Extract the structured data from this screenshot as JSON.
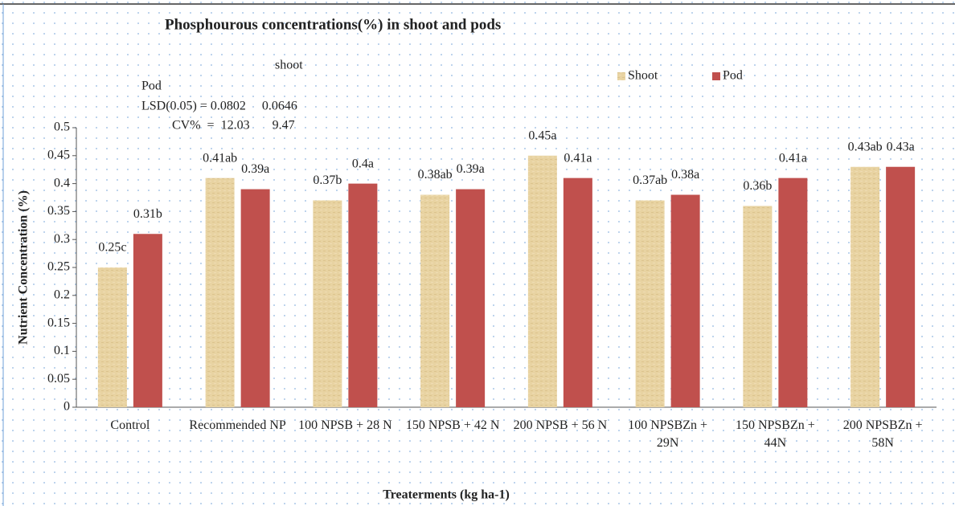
{
  "chart_data": {
    "type": "bar",
    "title": "Phosphourous concentrations(%) in shoot and pods",
    "x_label": "Treaterments (kg ha-1)",
    "y_label": "Nutrient Concentration (%)",
    "annotations": [
      "shoot",
      "Pod",
      "LSD(0.05) = 0.0802     0.0646",
      "CV%  =  12.03       9.47"
    ],
    "categories": [
      "Control",
      "Recommended NP",
      "100 NPSB + 28 N",
      "150 NPSB + 42 N",
      "200 NPSB + 56 N",
      "100 NPSBZn + 29N",
      "150 NPSBZn + 44N",
      "200 NPSBZn + 58N"
    ],
    "series": [
      {
        "name": "Shoot",
        "color": "#e6cf9c",
        "values": [
          0.25,
          0.41,
          0.37,
          0.38,
          0.45,
          0.37,
          0.36,
          0.43
        ],
        "value_labels": [
          "0.25c",
          "0.41ab",
          "0.37b",
          "0.38ab",
          "0.45a",
          "0.37ab",
          "0.36b",
          "0.43ab"
        ]
      },
      {
        "name": "Pod",
        "color": "#c0504d",
        "values": [
          0.31,
          0.39,
          0.4,
          0.39,
          0.41,
          0.38,
          0.41,
          0.43
        ],
        "value_labels": [
          "0.31b",
          "0.39a",
          "0.4a",
          "0.39a",
          "0.41a",
          "0.38a",
          "0.41a",
          "0.43a"
        ]
      }
    ],
    "ylim": [
      0,
      0.5
    ],
    "yticks": [
      0,
      0.05,
      0.1,
      0.15,
      0.2,
      0.25,
      0.3,
      0.35,
      0.4,
      0.45,
      0.5
    ],
    "grid": false,
    "legend": "top"
  }
}
